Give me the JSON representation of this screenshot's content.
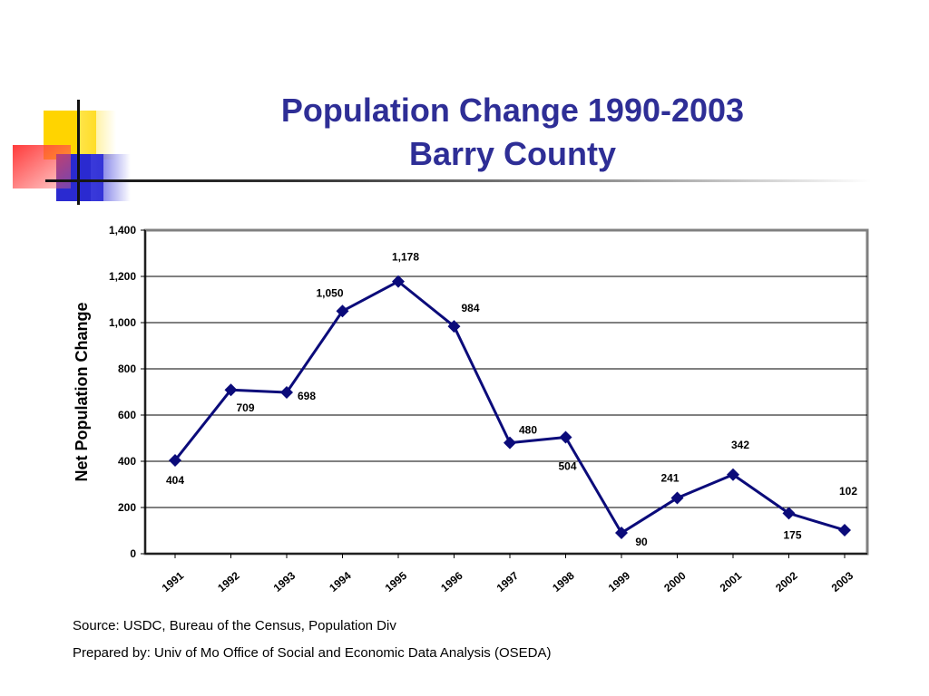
{
  "slide": {
    "title_line1": "Population Change 1990-2003",
    "title_line2": "Barry County",
    "source": "Source: USDC, Bureau of the Census, Population Div",
    "prepared": "Prepared by: Univ of Mo Office of Social and Economic Data Analysis (OSEDA)"
  },
  "chart_data": {
    "type": "line",
    "categories": [
      "1991",
      "1992",
      "1993",
      "1994",
      "1995",
      "1996",
      "1997",
      "1998",
      "1999",
      "2000",
      "2001",
      "2002",
      "2003"
    ],
    "series": [
      {
        "values": [
          404,
          709,
          698,
          1050,
          1178,
          984,
          480,
          504,
          90,
          241,
          342,
          175,
          102
        ]
      }
    ],
    "data_labels": [
      "404",
      "709",
      "698",
      "1,050",
      "1,178",
      "984",
      "480",
      "504",
      "90",
      "241",
      "342",
      "175",
      "102"
    ],
    "ylabel": "Net Population Change",
    "xlabel": "",
    "ylim": [
      0,
      1400
    ],
    "yticks": [
      0,
      200,
      400,
      600,
      800,
      1000,
      1200,
      1400
    ],
    "ytick_labels": [
      "0",
      "200",
      "400",
      "600",
      "800",
      "1,000",
      "1,200",
      "1,400"
    ],
    "grid": true,
    "line_color": "#0b0b7a",
    "title_color": "#2e2e96"
  }
}
